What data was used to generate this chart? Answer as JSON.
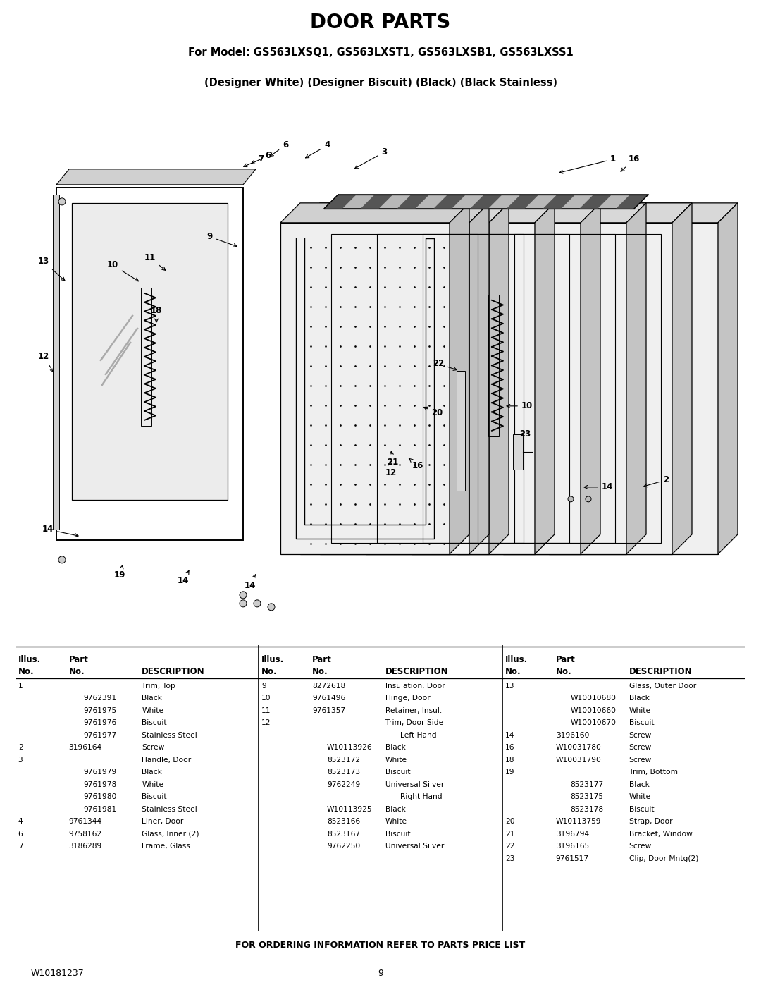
{
  "title": "DOOR PARTS",
  "subtitle1": "For Model: GS563LXSQ1, GS563LXST1, GS563LXSB1, GS563LXSS1",
  "subtitle2": "(Designer White) (Designer Biscuit) (Black) (Black Stainless)",
  "footer_note": "FOR ORDERING INFORMATION REFER TO PARTS PRICE LIST",
  "doc_number": "W10181237",
  "page_number": "9",
  "bg_color": "#ffffff",
  "parts_col1": [
    [
      "1",
      "",
      "Trim, Top"
    ],
    [
      "",
      "9762391",
      "Black"
    ],
    [
      "",
      "9761975",
      "White"
    ],
    [
      "",
      "9761976",
      "Biscuit"
    ],
    [
      "",
      "9761977",
      "Stainless Steel"
    ],
    [
      "2",
      "3196164",
      "Screw"
    ],
    [
      "3",
      "",
      "Handle, Door"
    ],
    [
      "",
      "9761979",
      "Black"
    ],
    [
      "",
      "9761978",
      "White"
    ],
    [
      "",
      "9761980",
      "Biscuit"
    ],
    [
      "",
      "9761981",
      "Stainless Steel"
    ],
    [
      "4",
      "9761344",
      "Liner, Door"
    ],
    [
      "6",
      "9758162",
      "Glass, Inner (2)"
    ],
    [
      "7",
      "3186289",
      "Frame, Glass"
    ]
  ],
  "parts_col2": [
    [
      "9",
      "8272618",
      "Insulation, Door"
    ],
    [
      "10",
      "9761496",
      "Hinge, Door"
    ],
    [
      "11",
      "9761357",
      "Retainer, Insul."
    ],
    [
      "12",
      "",
      "Trim, Door Side"
    ],
    [
      "",
      "",
      "Left Hand"
    ],
    [
      "",
      "W10113926",
      "Black"
    ],
    [
      "",
      "8523172",
      "White"
    ],
    [
      "",
      "8523173",
      "Biscuit"
    ],
    [
      "",
      "9762249",
      "Universal Silver"
    ],
    [
      "",
      "",
      "Right Hand"
    ],
    [
      "",
      "W10113925",
      "Black"
    ],
    [
      "",
      "8523166",
      "White"
    ],
    [
      "",
      "8523167",
      "Biscuit"
    ],
    [
      "",
      "9762250",
      "Universal Silver"
    ]
  ],
  "parts_col3": [
    [
      "13",
      "",
      "Glass, Outer Door"
    ],
    [
      "",
      "W10010680",
      "Black"
    ],
    [
      "",
      "W10010660",
      "White"
    ],
    [
      "",
      "W10010670",
      "Biscuit"
    ],
    [
      "14",
      "3196160",
      "Screw"
    ],
    [
      "16",
      "W10031780",
      "Screw"
    ],
    [
      "18",
      "W10031790",
      "Screw"
    ],
    [
      "19",
      "",
      "Trim, Bottom"
    ],
    [
      "",
      "8523177",
      "Black"
    ],
    [
      "",
      "8523175",
      "White"
    ],
    [
      "",
      "8523178",
      "Biscuit"
    ],
    [
      "20",
      "W10113759",
      "Strap, Door"
    ],
    [
      "21",
      "3196794",
      "Bracket, Window"
    ],
    [
      "22",
      "3196165",
      "Screw"
    ],
    [
      "23",
      "9761517",
      "Clip, Door Mntg(2)"
    ]
  ]
}
